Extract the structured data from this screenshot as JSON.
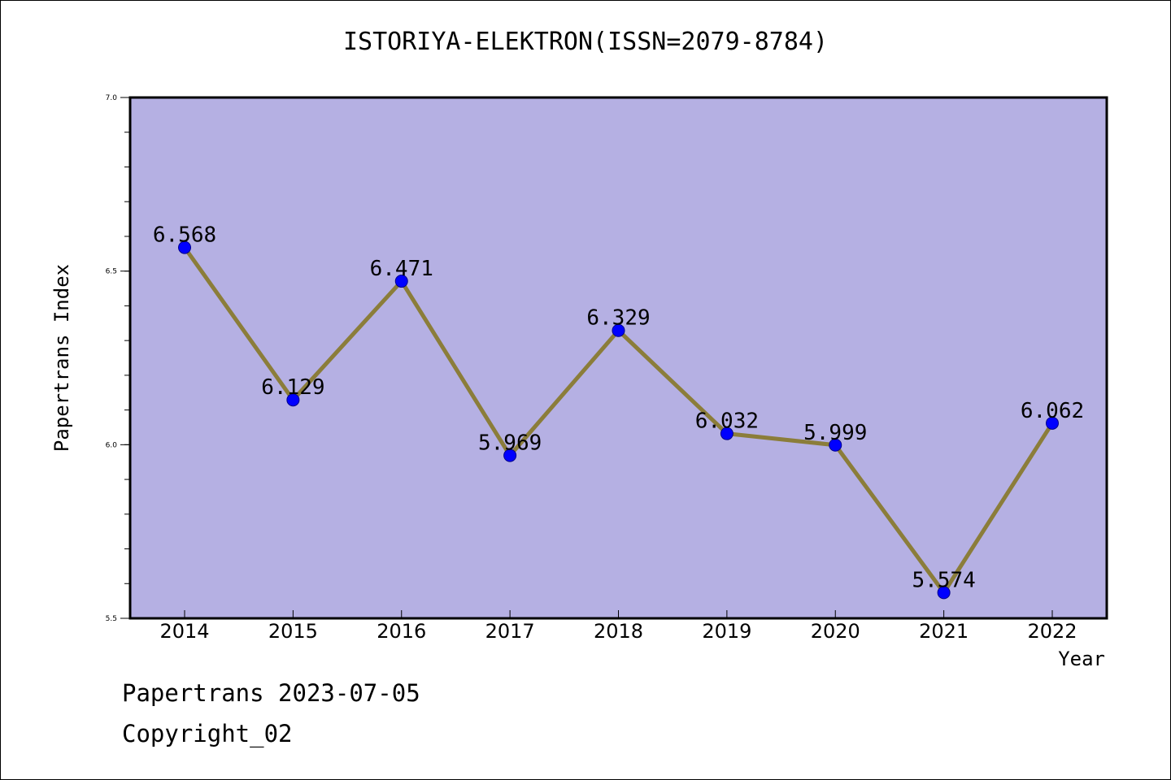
{
  "chart_data": {
    "type": "line",
    "title": "ISTORIYA-ELEKTRON(ISSN=2079-8784)",
    "xlabel": "Year",
    "ylabel": "Papertrans Index",
    "x": [
      "2014",
      "2015",
      "2016",
      "2017",
      "2018",
      "2019",
      "2020",
      "2021",
      "2022"
    ],
    "values": [
      6.568,
      6.129,
      6.471,
      5.969,
      6.329,
      6.032,
      5.999,
      5.574,
      6.062
    ],
    "data_labels": [
      "6.568",
      "6.129",
      "6.471",
      "5.969",
      "6.329",
      "6.032",
      "5.999",
      "5.574",
      "6.062"
    ],
    "y_ticks": [
      "5.5",
      "6.0",
      "6.5",
      "7.0"
    ],
    "ylim": [
      5.5,
      7.0
    ],
    "grid": false,
    "colors": {
      "plot_background": "#b5b0e3",
      "line": "#8b7d3a",
      "marker": "#0000ff"
    }
  },
  "footer": {
    "line1": "Papertrans 2023-07-05",
    "line2": "Copyright_02"
  }
}
